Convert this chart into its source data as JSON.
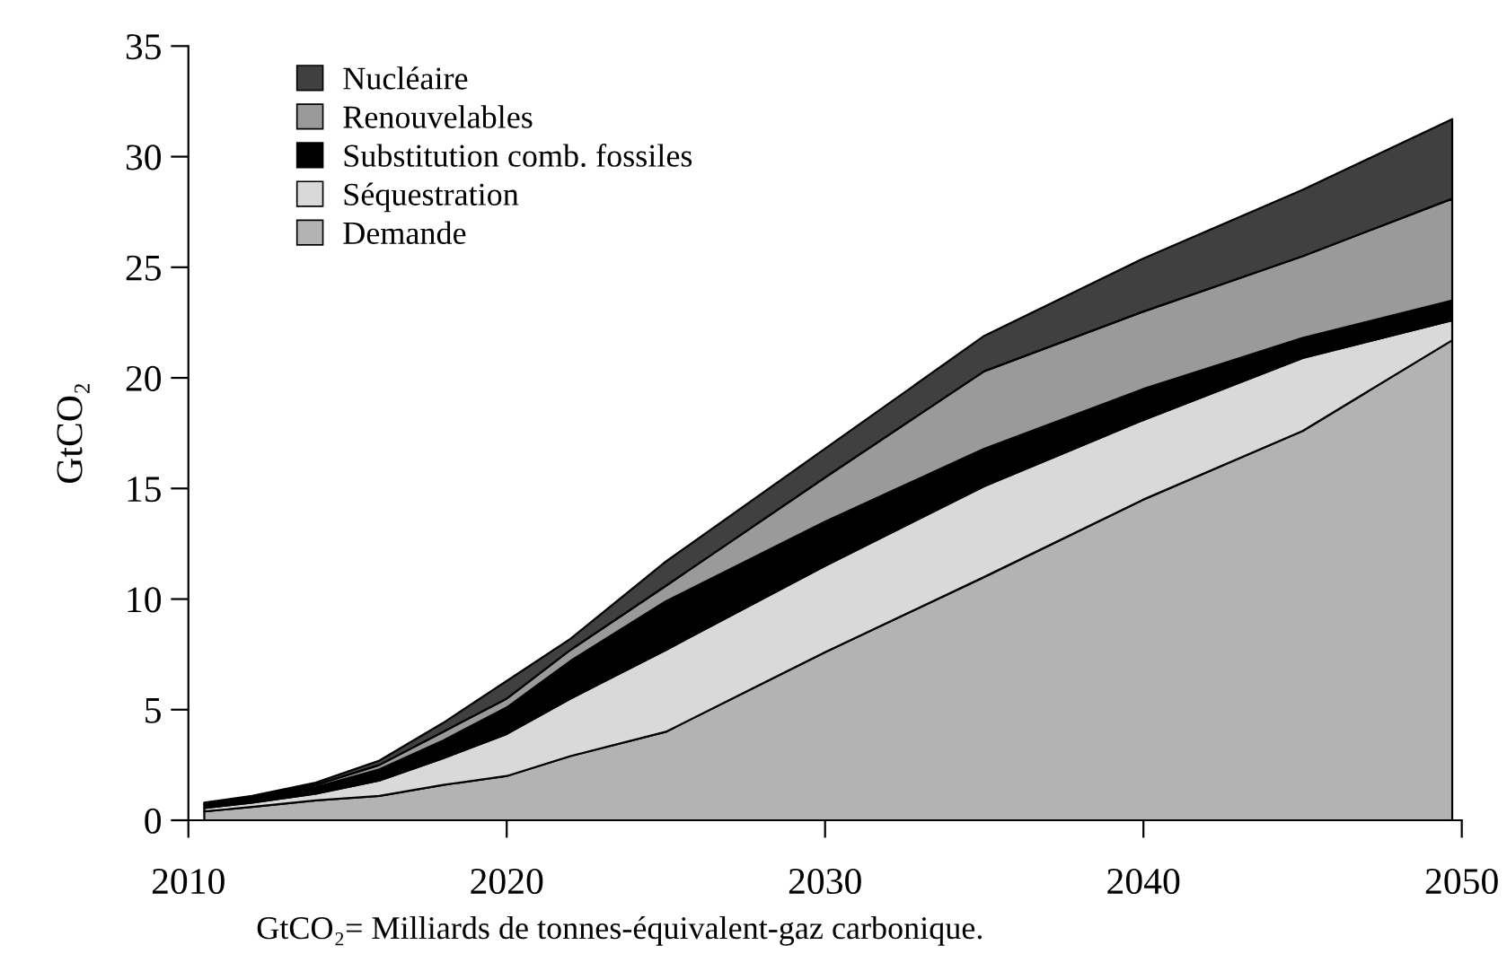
{
  "chart_data": {
    "type": "area",
    "stacked": true,
    "ylabel": "GtCO₂",
    "legend": "top left",
    "grid": false,
    "x": [
      2010.5,
      2012,
      2014,
      2016,
      2018,
      2020,
      2022,
      2025,
      2030,
      2035,
      2040,
      2045,
      2049.7
    ],
    "xlim": [
      2010,
      2050
    ],
    "xticks": [
      2010,
      2020,
      2030,
      2040,
      2050
    ],
    "ylim": [
      0,
      35
    ],
    "yticks": [
      0,
      5,
      10,
      15,
      20,
      25,
      30,
      35
    ],
    "series": [
      {
        "name": "Demande",
        "color": "#b3b3b3",
        "values": [
          0.4,
          0.6,
          0.9,
          1.1,
          1.6,
          2.0,
          2.9,
          4.0,
          7.6,
          11.0,
          14.5,
          17.6,
          21.7
        ]
      },
      {
        "name": "Séquestration",
        "color": "#d9d9d9",
        "values": [
          0.15,
          0.2,
          0.3,
          0.7,
          1.2,
          1.9,
          2.6,
          3.7,
          3.9,
          4.1,
          3.6,
          3.3,
          0.9
        ]
      },
      {
        "name": "Substitution comb. fossiles",
        "color": "#000000",
        "values": [
          0.15,
          0.2,
          0.3,
          0.5,
          0.8,
          1.2,
          1.7,
          2.2,
          2.0,
          1.7,
          1.4,
          0.9,
          0.9
        ]
      },
      {
        "name": "Renouvelables",
        "color": "#9a9a9a",
        "values": [
          0.05,
          0.05,
          0.1,
          0.2,
          0.4,
          0.4,
          0.5,
          0.7,
          2.0,
          3.5,
          3.5,
          3.7,
          4.6
        ]
      },
      {
        "name": "Nucléaire",
        "color": "#404040",
        "values": [
          0.05,
          0.05,
          0.1,
          0.2,
          0.4,
          0.8,
          0.5,
          1.1,
          1.3,
          1.6,
          2.4,
          3.0,
          3.6
        ]
      }
    ],
    "annotations": [
      "GtCO₂= Milliards de tonnes-équivalent-gaz carbonique."
    ]
  }
}
